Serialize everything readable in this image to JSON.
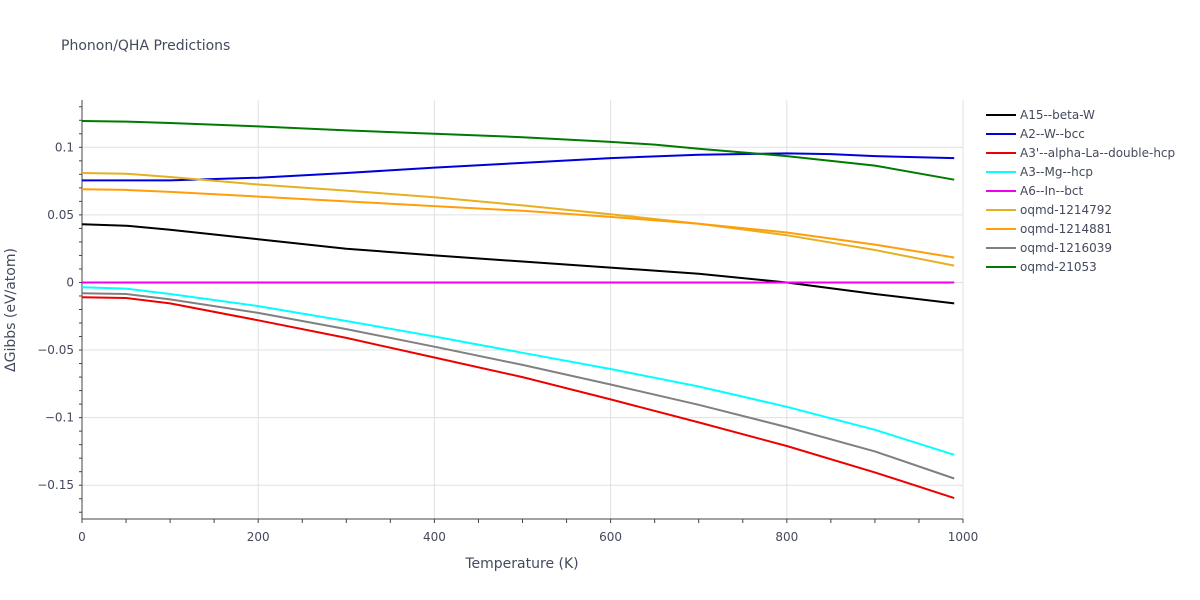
{
  "chart_data": {
    "type": "line",
    "title": "Phonon/QHA Predictions",
    "xlabel": "Temperature (K)",
    "ylabel": "ΔGibbs (eV/atom)",
    "xlim": [
      0,
      1000
    ],
    "ylim": [
      -0.175,
      0.135
    ],
    "xticks": [
      0,
      200,
      400,
      600,
      800,
      1000
    ],
    "xtick_labels": [
      "0",
      "200",
      "400",
      "600",
      "800",
      "1000"
    ],
    "yticks": [
      -0.15,
      -0.1,
      -0.05,
      0,
      0.05,
      0.1
    ],
    "ytick_labels": [
      "−0.15",
      "−0.1",
      "−0.05",
      "0",
      "0.05",
      "0.1"
    ],
    "grid": true,
    "legend_position": "right",
    "series": [
      {
        "name": "A15--beta-W",
        "color": "#000000",
        "x": [
          0,
          50,
          100,
          200,
          300,
          400,
          500,
          600,
          700,
          800,
          900,
          990
        ],
        "y": [
          0.043,
          0.042,
          0.039,
          0.032,
          0.025,
          0.02,
          0.0155,
          0.011,
          0.0065,
          0.0,
          -0.0085,
          -0.0155
        ]
      },
      {
        "name": "A2--W--bcc",
        "color": "#0000dd",
        "x": [
          0,
          100,
          200,
          300,
          400,
          500,
          600,
          700,
          800,
          850,
          900,
          990
        ],
        "y": [
          0.0755,
          0.0755,
          0.0775,
          0.081,
          0.085,
          0.0885,
          0.092,
          0.0945,
          0.0955,
          0.095,
          0.0935,
          0.092
        ]
      },
      {
        "name": "A3'--alpha-La--double-hcp",
        "color": "#ee0000",
        "x": [
          0,
          50,
          100,
          200,
          300,
          400,
          500,
          600,
          700,
          800,
          900,
          990
        ],
        "y": [
          -0.011,
          -0.0115,
          -0.0155,
          -0.028,
          -0.041,
          -0.0555,
          -0.07,
          -0.0865,
          -0.1035,
          -0.121,
          -0.1405,
          -0.1595
        ]
      },
      {
        "name": "A3--Mg--hcp",
        "color": "#00ffff",
        "x": [
          0,
          50,
          100,
          200,
          300,
          400,
          500,
          600,
          700,
          800,
          900,
          990
        ],
        "y": [
          -0.0035,
          -0.0045,
          -0.0085,
          -0.0175,
          -0.0285,
          -0.04,
          -0.052,
          -0.064,
          -0.077,
          -0.092,
          -0.109,
          -0.1275
        ]
      },
      {
        "name": "A6--In--bct",
        "color": "#ee00ee",
        "x": [
          0,
          990
        ],
        "y": [
          0.0,
          0.0
        ]
      },
      {
        "name": "oqmd-1214792",
        "color": "#e6b020",
        "x": [
          0,
          50,
          100,
          200,
          300,
          400,
          500,
          600,
          700,
          800,
          900,
          990
        ],
        "y": [
          0.081,
          0.0805,
          0.078,
          0.0725,
          0.068,
          0.063,
          0.057,
          0.0505,
          0.0435,
          0.035,
          0.024,
          0.0125
        ]
      },
      {
        "name": "oqmd-1214881",
        "color": "#ff9e0a",
        "x": [
          0,
          50,
          100,
          200,
          300,
          400,
          500,
          600,
          700,
          800,
          900,
          990
        ],
        "y": [
          0.069,
          0.0685,
          0.067,
          0.0635,
          0.06,
          0.0565,
          0.053,
          0.0485,
          0.0435,
          0.037,
          0.028,
          0.0185
        ]
      },
      {
        "name": "oqmd-1216039",
        "color": "#808080",
        "x": [
          0,
          50,
          100,
          200,
          300,
          400,
          500,
          600,
          700,
          800,
          900,
          990
        ],
        "y": [
          -0.008,
          -0.0085,
          -0.0125,
          -0.0225,
          -0.0345,
          -0.0475,
          -0.061,
          -0.0755,
          -0.0905,
          -0.107,
          -0.125,
          -0.145
        ]
      },
      {
        "name": "oqmd-21053",
        "color": "#007a00",
        "x": [
          0,
          50,
          100,
          200,
          300,
          400,
          500,
          600,
          650,
          700,
          800,
          900,
          990
        ],
        "y": [
          0.1195,
          0.119,
          0.118,
          0.1155,
          0.1125,
          0.11,
          0.1075,
          0.104,
          0.102,
          0.099,
          0.0935,
          0.0865,
          0.076
        ]
      }
    ]
  }
}
